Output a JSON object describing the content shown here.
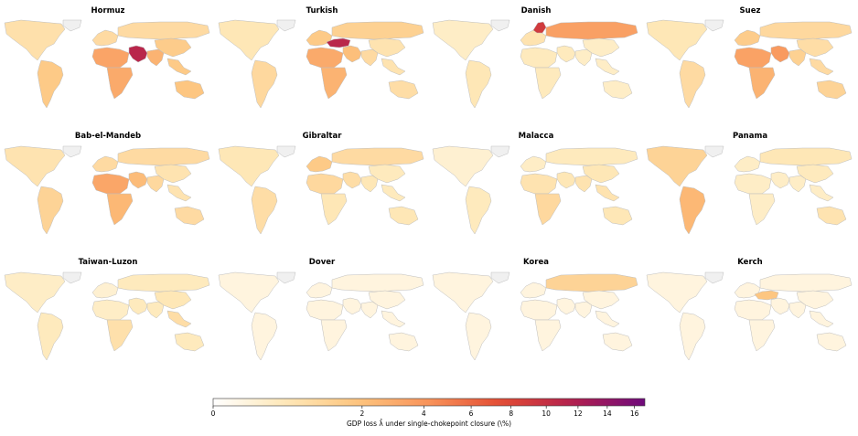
{
  "chart_data": {
    "type": "map",
    "layout": {
      "rows": 3,
      "cols": 4
    },
    "panels": [
      {
        "title": "Hormuz",
        "regions": {
          "north_america": 0.7,
          "south_america": 1.6,
          "europe": 0.9,
          "russia": 0.9,
          "africa_north": 3.3,
          "africa_south": 3.0,
          "middle_east": 11.0,
          "south_asia": 2.6,
          "east_asia": 1.5,
          "southeast_asia": 1.6,
          "oceania": 1.8,
          "greenland": 0.3
        }
      },
      {
        "title": "Turkish",
        "regions": {
          "north_america": 0.5,
          "south_america": 1.0,
          "europe": 1.6,
          "russia": 1.3,
          "black_sea_caspian": 11.0,
          "africa_north": 3.0,
          "africa_south": 2.6,
          "middle_east": 2.1,
          "south_asia": 0.9,
          "east_asia": 0.6,
          "southeast_asia": 0.6,
          "oceania": 0.8,
          "greenland": 0.3
        }
      },
      {
        "title": "Danish",
        "regions": {
          "north_america": 0.3,
          "south_america": 0.5,
          "europe": 0.6,
          "baltic": 9.0,
          "russia": 3.5,
          "africa_north": 0.4,
          "africa_south": 0.4,
          "middle_east": 0.4,
          "south_asia": 0.3,
          "east_asia": 0.3,
          "southeast_asia": 0.3,
          "oceania": 0.3,
          "greenland": 0.3
        }
      },
      {
        "title": "Suez",
        "regions": {
          "north_america": 0.5,
          "south_america": 0.9,
          "europe": 1.5,
          "russia": 1.0,
          "africa_north": 3.4,
          "africa_south": 2.6,
          "middle_east": 3.8,
          "south_asia": 1.3,
          "east_asia": 0.8,
          "southeast_asia": 0.9,
          "oceania": 1.2,
          "greenland": 0.3
        }
      },
      {
        "title": "Bab-el-Mandeb",
        "regions": {
          "north_america": 0.6,
          "south_america": 1.2,
          "europe": 0.9,
          "russia": 0.9,
          "africa_north": 3.2,
          "africa_south": 2.4,
          "middle_east": 2.2,
          "south_asia": 1.0,
          "east_asia": 0.6,
          "southeast_asia": 0.6,
          "oceania": 0.9,
          "greenland": 0.3
        }
      },
      {
        "title": "Gibraltar",
        "regions": {
          "north_america": 0.5,
          "south_america": 0.8,
          "europe": 1.6,
          "russia": 0.9,
          "africa_north": 1.0,
          "africa_south": 0.5,
          "middle_east": 0.8,
          "south_asia": 0.5,
          "east_asia": 0.4,
          "southeast_asia": 0.4,
          "oceania": 0.5,
          "greenland": 0.3
        }
      },
      {
        "title": "Malacca",
        "regions": {
          "north_america": 0.2,
          "south_america": 0.4,
          "europe": 0.3,
          "russia": 0.4,
          "africa_north": 0.6,
          "africa_south": 1.0,
          "middle_east": 0.5,
          "south_asia": 0.6,
          "east_asia": 0.5,
          "southeast_asia": 0.6,
          "oceania": 0.5,
          "greenland": 0.3
        }
      },
      {
        "title": "Panama",
        "regions": {
          "north_america": 1.2,
          "south_america": 2.4,
          "europe": 0.3,
          "russia": 0.5,
          "africa_north": 0.3,
          "africa_south": 0.3,
          "middle_east": 0.3,
          "south_asia": 0.3,
          "east_asia": 0.4,
          "southeast_asia": 0.3,
          "oceania": 0.6,
          "greenland": 0.3
        }
      },
      {
        "title": "Taiwan-Luzon",
        "regions": {
          "north_america": 0.3,
          "south_america": 0.4,
          "europe": 0.2,
          "russia": 0.4,
          "africa_north": 0.3,
          "africa_south": 0.7,
          "middle_east": 0.4,
          "south_asia": 0.4,
          "east_asia": 0.5,
          "southeast_asia": 0.8,
          "oceania": 0.4,
          "greenland": 0.3
        }
      },
      {
        "title": "Dover",
        "regions": {
          "north_america": 0.1,
          "south_america": 0.1,
          "europe": 0.1,
          "russia": 0.1,
          "africa_north": 0.1,
          "africa_south": 0.1,
          "middle_east": 0.1,
          "south_asia": 0.1,
          "east_asia": 0.1,
          "southeast_asia": 0.1,
          "oceania": 0.1,
          "greenland": 0.3
        }
      },
      {
        "title": "Korea",
        "regions": {
          "north_america": 0.1,
          "south_america": 0.1,
          "europe": 0.1,
          "russia": 1.2,
          "africa_north": 0.1,
          "africa_south": 0.1,
          "middle_east": 0.1,
          "south_asia": 0.1,
          "east_asia": 0.1,
          "southeast_asia": 0.1,
          "oceania": 0.1,
          "greenland": 0.3
        }
      },
      {
        "title": "Kerch",
        "regions": {
          "north_america": 0.1,
          "south_america": 0.1,
          "europe": 0.1,
          "russia": 0.1,
          "black_sea_caspian": 1.8,
          "africa_north": 0.1,
          "africa_south": 0.1,
          "middle_east": 0.1,
          "south_asia": 0.1,
          "east_asia": 0.1,
          "southeast_asia": 0.1,
          "oceania": 0.1,
          "greenland": 0.3
        }
      }
    ],
    "colorbar": {
      "label": "GDP loss λ̂ under single-chokepoint closure (\\%)",
      "range": [
        0,
        16.8
      ],
      "scale": "sqrt",
      "ticks": [
        "0",
        "2",
        "4",
        "6",
        "8",
        "10",
        "12",
        "14",
        "16"
      ],
      "colormap": [
        "#ffffff",
        "#fee8b8",
        "#fdc57f",
        "#f8935a",
        "#e34c33",
        "#b2204f",
        "#6f0a7c"
      ]
    },
    "colors": {
      "land_missing": "#f0f0f0",
      "border": "#bdbdbd"
    }
  }
}
